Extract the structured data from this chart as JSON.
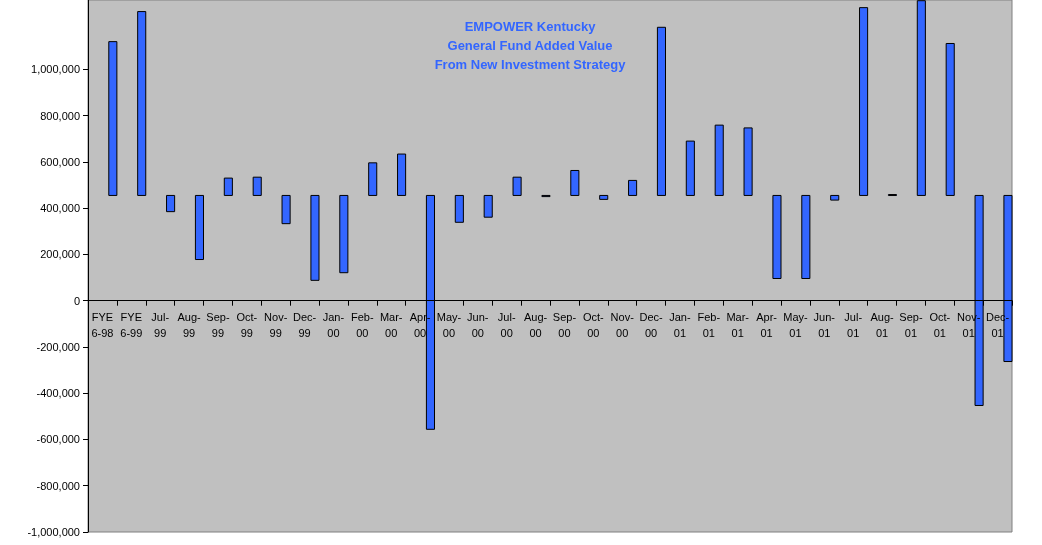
{
  "chart_data": {
    "type": "bar",
    "title": "EMPOWER Kentucky\nGeneral Fund Added Value\nFrom New Investment Strategy",
    "categories": [
      "FYE 6-98",
      "FYE 6-99",
      "Jul-99",
      "Aug-99",
      "Sep-99",
      "Oct-99",
      "Nov-99",
      "Dec-99",
      "Jan-00",
      "Feb-00",
      "Mar-00",
      "Apr-00",
      "May-00",
      "Jun-00",
      "Jul-00",
      "Aug-00",
      "Sep-00",
      "Oct-00",
      "Nov-00",
      "Dec-00",
      "Jan-01",
      "Feb-01",
      "Mar-01",
      "Apr-01",
      "May-01",
      "Jun-01",
      "Jul-01",
      "Aug-01",
      "Sep-01",
      "Oct-01",
      "Nov-01",
      "Dec-01"
    ],
    "base": [
      455000,
      455000,
      455000,
      455000,
      455000,
      455000,
      455000,
      455000,
      455000,
      455000,
      455000,
      455000,
      455000,
      455000,
      455000,
      455000,
      455000,
      455000,
      455000,
      455000,
      455000,
      455000,
      455000,
      455000,
      455000,
      455000,
      455000,
      455000,
      455000,
      455000,
      455000,
      455000
    ],
    "values": [
      665000,
      795000,
      -70000,
      -277000,
      75000,
      79000,
      -122000,
      -367000,
      -334000,
      141000,
      179000,
      -1011000,
      -116000,
      -94000,
      79000,
      -5000,
      108000,
      -17000,
      65000,
      727000,
      235000,
      304000,
      292000,
      -359000,
      -359000,
      -20000,
      812000,
      4000,
      842000,
      657000,
      -908000,
      -718000
    ],
    "color": "#3366ff",
    "ylim": [
      -1000000,
      1300000
    ],
    "yticks": [
      {
        "value": -1000000,
        "label": "-1,000,000"
      },
      {
        "value": -800000,
        "label": "-800,000"
      },
      {
        "value": -600000,
        "label": "-600,000"
      },
      {
        "value": -400000,
        "label": "-400,000"
      },
      {
        "value": -200000,
        "label": "-200,000"
      },
      0,
      {
        "value": 200000,
        "label": "200,000"
      },
      {
        "value": 400000,
        "label": "400,000"
      },
      {
        "value": 600000,
        "label": "600,000"
      },
      {
        "value": 800000,
        "label": "800,000"
      },
      {
        "value": 1000000,
        "label": "1,000,000"
      }
    ]
  }
}
